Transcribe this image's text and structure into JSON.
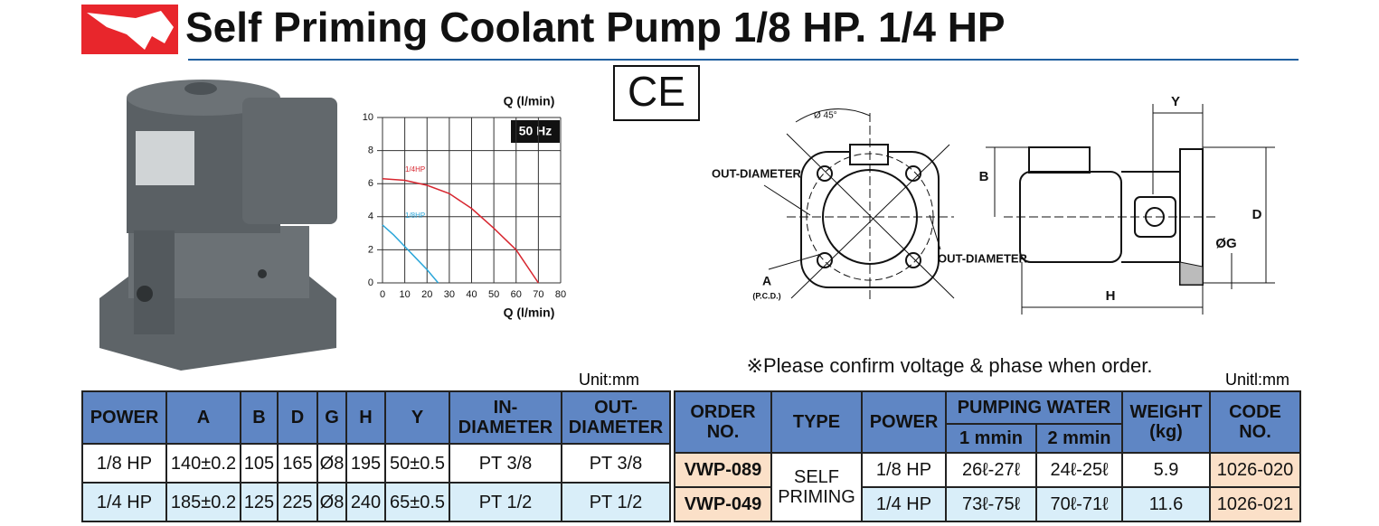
{
  "header": {
    "title": "Self Priming Coolant Pump 1/8 HP. 1/4 HP"
  },
  "ce_mark": "CE",
  "chart_data": {
    "type": "line",
    "y_label": "Q (l/min)",
    "x_label": "Q (l/min)",
    "badge": "50 Hz",
    "xlim": [
      0,
      80
    ],
    "ylim": [
      0,
      10
    ],
    "xticks": [
      0,
      10,
      20,
      30,
      40,
      50,
      60,
      70,
      80
    ],
    "yticks": [
      0,
      2,
      4,
      6,
      8,
      10
    ],
    "grid": true,
    "series": [
      {
        "name": "1/4HP",
        "color": "#d7262f",
        "x": [
          0,
          10,
          20,
          30,
          40,
          50,
          60,
          70
        ],
        "values": [
          6.3,
          6.2,
          5.9,
          5.4,
          4.5,
          3.3,
          2.0,
          0
        ]
      },
      {
        "name": "1/8HP",
        "color": "#2ba6d9",
        "x": [
          0,
          5,
          10,
          15,
          20,
          25
        ],
        "values": [
          3.5,
          2.9,
          2.2,
          1.5,
          0.8,
          0
        ]
      }
    ]
  },
  "diagram": {
    "angle": "Ø 45°",
    "out_diameter_left": "OUT-DIAMETER",
    "out_diameter_right": "OUT-DIAMETER",
    "a": "A",
    "pcd": "(P.C.D.)",
    "y": "Y",
    "b": "B",
    "d": "D",
    "g": "ØG",
    "h": "H"
  },
  "note": "※Please confirm voltage & phase when order.",
  "left_table": {
    "unit": "Unit:mm",
    "headers": [
      "POWER",
      "A",
      "B",
      "D",
      "G",
      "H",
      "Y",
      "IN-DIAMETER",
      "OUT-DIAMETER"
    ],
    "rows": [
      [
        "1/8 HP",
        "140±0.2",
        "105",
        "165",
        "Ø8",
        "195",
        "50±0.5",
        "PT 3/8",
        "PT 3/8"
      ],
      [
        "1/4 HP",
        "185±0.2",
        "125",
        "225",
        "Ø8",
        "240",
        "65±0.5",
        "PT 1/2",
        "PT 1/2"
      ]
    ]
  },
  "right_table": {
    "unit": "Unitl:mm",
    "headers": [
      "ORDER NO.",
      "TYPE",
      "POWER",
      "PUMPING WATER",
      "WEIGHT (kg)",
      "CODE NO."
    ],
    "subheaders": [
      "1 mmin",
      "2 mmin"
    ],
    "type_cell": "SELF PRIMING",
    "rows": [
      [
        "VWP-089",
        "1/8 HP",
        "26ℓ-27ℓ",
        "24ℓ-25ℓ",
        "5.9",
        "1026-020"
      ],
      [
        "VWP-049",
        "1/4 HP",
        "73ℓ-75ℓ",
        "70ℓ-71ℓ",
        "11.6",
        "1026-021"
      ]
    ]
  }
}
